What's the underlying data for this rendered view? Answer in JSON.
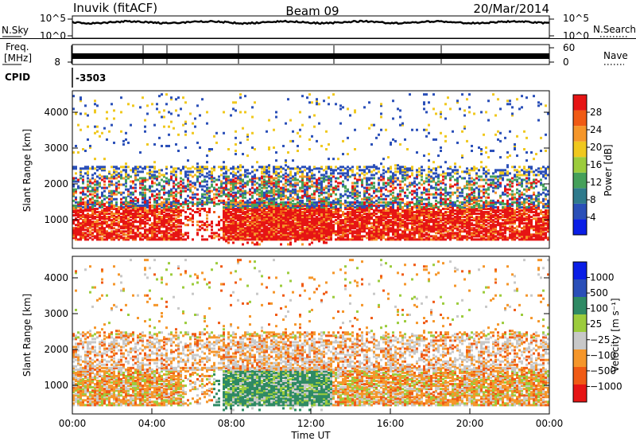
{
  "header": {
    "station": "Inuvik (fitACF)",
    "beam": "Beam 09",
    "date": "20/Mar/2014"
  },
  "top_panels": {
    "nsky_label": "N.Sky",
    "nsky_ticks": [
      "10^5",
      "10^0"
    ],
    "nsearch_label": "N.Search",
    "nsearch_ticks": [
      "10^5",
      "10^0"
    ],
    "freq_label_1": "Freq.",
    "freq_label_2": "[MHz]",
    "freq_ticks": [
      "8"
    ],
    "nave_label": "Nave",
    "nave_ticks": [
      "60",
      "0"
    ],
    "cpid_label": "CPID",
    "cpid_value": "-3503"
  },
  "colors": {
    "power_scale": [
      "#0a1ee6",
      "#2a4fb8",
      "#2f7a8c",
      "#45a05a",
      "#9ccc3c",
      "#f0c81e",
      "#f5962a",
      "#f05a14",
      "#e61414"
    ],
    "velocity_scale": [
      "#e61414",
      "#f05a14",
      "#f5962a",
      "#c8c8c8",
      "#9ccc3c",
      "#2f8a64",
      "#2a4fb8",
      "#0a1ee6"
    ]
  },
  "chart_data": [
    {
      "type": "heatmap",
      "panel": "power",
      "ylabel": "Slant Range [km]",
      "yticks": [
        "1000",
        "2000",
        "3000",
        "4000"
      ],
      "ylim": [
        200,
        4600
      ],
      "xlim": [
        "00:00",
        "24:00"
      ],
      "colorbar_label": "Power [dB]",
      "colorbar_ticks": [
        "4",
        "8",
        "12",
        "16",
        "20",
        "24",
        "28"
      ],
      "colorbar_range": [
        0,
        32
      ]
    },
    {
      "type": "heatmap",
      "panel": "velocity",
      "ylabel": "Slant Range [km]",
      "yticks": [
        "1000",
        "2000",
        "3000",
        "4000"
      ],
      "ylim": [
        200,
        4600
      ],
      "xlim": [
        "00:00",
        "24:00"
      ],
      "xlabel": "Time UT",
      "xticks": [
        "00:00",
        "04:00",
        "08:00",
        "12:00",
        "16:00",
        "20:00",
        "00:00"
      ],
      "colorbar_label": "Velocity [m s⁻¹]",
      "colorbar_ticks": [
        "1000",
        "500",
        "100",
        "25",
        "−25",
        "−100",
        "−500",
        "−1000"
      ]
    }
  ]
}
